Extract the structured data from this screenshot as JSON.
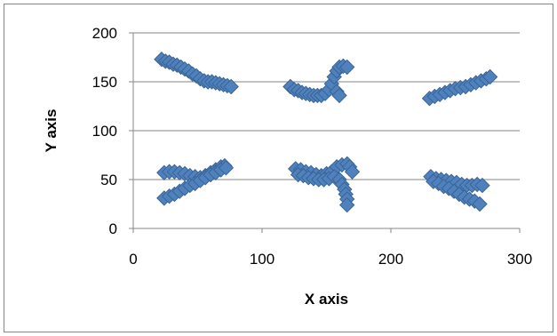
{
  "chart_data": {
    "type": "scatter",
    "title": "",
    "xlabel": "X axis",
    "ylabel": "Y axis",
    "xlim": [
      0,
      300
    ],
    "ylim": [
      0,
      200
    ],
    "xticks": [
      0,
      100,
      200,
      300
    ],
    "yticks": [
      0,
      50,
      100,
      150,
      200
    ],
    "grid": "horizontal",
    "legend": "none",
    "marker": "diamond",
    "colors": {
      "marker_fill": "#4F81BD",
      "marker_edge": "#3A6496",
      "gridline": "#868686",
      "axis": "#868686"
    },
    "series": [
      {
        "points": [
          [
            22,
            173
          ],
          [
            25,
            171
          ],
          [
            28,
            170
          ],
          [
            31,
            168
          ],
          [
            34,
            167
          ],
          [
            37,
            165
          ],
          [
            40,
            163
          ],
          [
            43,
            161
          ],
          [
            46,
            158
          ],
          [
            49,
            156
          ],
          [
            52,
            153
          ],
          [
            55,
            151
          ],
          [
            58,
            150
          ],
          [
            61,
            150
          ],
          [
            64,
            149
          ],
          [
            67,
            148
          ],
          [
            70,
            147
          ],
          [
            73,
            146
          ],
          [
            76,
            145
          ],
          [
            122,
            145
          ],
          [
            125,
            142
          ],
          [
            128,
            141
          ],
          [
            131,
            139
          ],
          [
            134,
            138
          ],
          [
            137,
            137
          ],
          [
            140,
            136
          ],
          [
            143,
            136
          ],
          [
            146,
            136
          ],
          [
            149,
            138
          ],
          [
            152,
            142
          ],
          [
            154,
            148
          ],
          [
            156,
            155
          ],
          [
            158,
            161
          ],
          [
            160,
            165
          ],
          [
            163,
            166
          ],
          [
            166,
            165
          ],
          [
            158,
            140
          ],
          [
            160,
            136
          ],
          [
            230,
            133
          ],
          [
            234,
            135
          ],
          [
            238,
            137
          ],
          [
            242,
            139
          ],
          [
            246,
            141
          ],
          [
            250,
            143
          ],
          [
            254,
            144
          ],
          [
            258,
            145
          ],
          [
            262,
            147
          ],
          [
            266,
            149
          ],
          [
            270,
            151
          ],
          [
            274,
            153
          ],
          [
            277,
            155
          ],
          [
            24,
            57
          ],
          [
            28,
            58
          ],
          [
            32,
            58
          ],
          [
            36,
            57
          ],
          [
            40,
            56
          ],
          [
            44,
            54
          ],
          [
            48,
            53
          ],
          [
            52,
            52
          ],
          [
            56,
            54
          ],
          [
            60,
            57
          ],
          [
            64,
            60
          ],
          [
            68,
            63
          ],
          [
            71,
            64
          ],
          [
            24,
            31
          ],
          [
            28,
            33
          ],
          [
            32,
            35
          ],
          [
            36,
            38
          ],
          [
            40,
            41
          ],
          [
            44,
            44
          ],
          [
            48,
            46
          ],
          [
            52,
            49
          ],
          [
            56,
            52
          ],
          [
            60,
            55
          ],
          [
            64,
            57
          ],
          [
            68,
            60
          ],
          [
            72,
            62
          ],
          [
            126,
            61
          ],
          [
            130,
            60
          ],
          [
            134,
            58
          ],
          [
            138,
            57
          ],
          [
            142,
            55
          ],
          [
            146,
            54
          ],
          [
            150,
            56
          ],
          [
            154,
            58
          ],
          [
            158,
            63
          ],
          [
            162,
            65
          ],
          [
            166,
            66
          ],
          [
            168,
            63
          ],
          [
            170,
            58
          ],
          [
            128,
            55
          ],
          [
            132,
            54
          ],
          [
            136,
            52
          ],
          [
            140,
            51
          ],
          [
            144,
            50
          ],
          [
            148,
            50
          ],
          [
            152,
            51
          ],
          [
            156,
            53
          ],
          [
            160,
            50
          ],
          [
            162,
            45
          ],
          [
            164,
            40
          ],
          [
            165,
            35
          ],
          [
            166,
            30
          ],
          [
            166,
            24
          ],
          [
            231,
            53
          ],
          [
            235,
            51
          ],
          [
            239,
            50
          ],
          [
            243,
            49
          ],
          [
            247,
            48
          ],
          [
            251,
            47
          ],
          [
            255,
            45
          ],
          [
            259,
            44
          ],
          [
            263,
            44
          ],
          [
            267,
            45
          ],
          [
            271,
            44
          ],
          [
            233,
            48
          ],
          [
            237,
            46
          ],
          [
            241,
            43
          ],
          [
            245,
            41
          ],
          [
            249,
            38
          ],
          [
            253,
            35
          ],
          [
            257,
            32
          ],
          [
            261,
            30
          ],
          [
            265,
            28
          ],
          [
            269,
            25
          ]
        ]
      }
    ]
  }
}
